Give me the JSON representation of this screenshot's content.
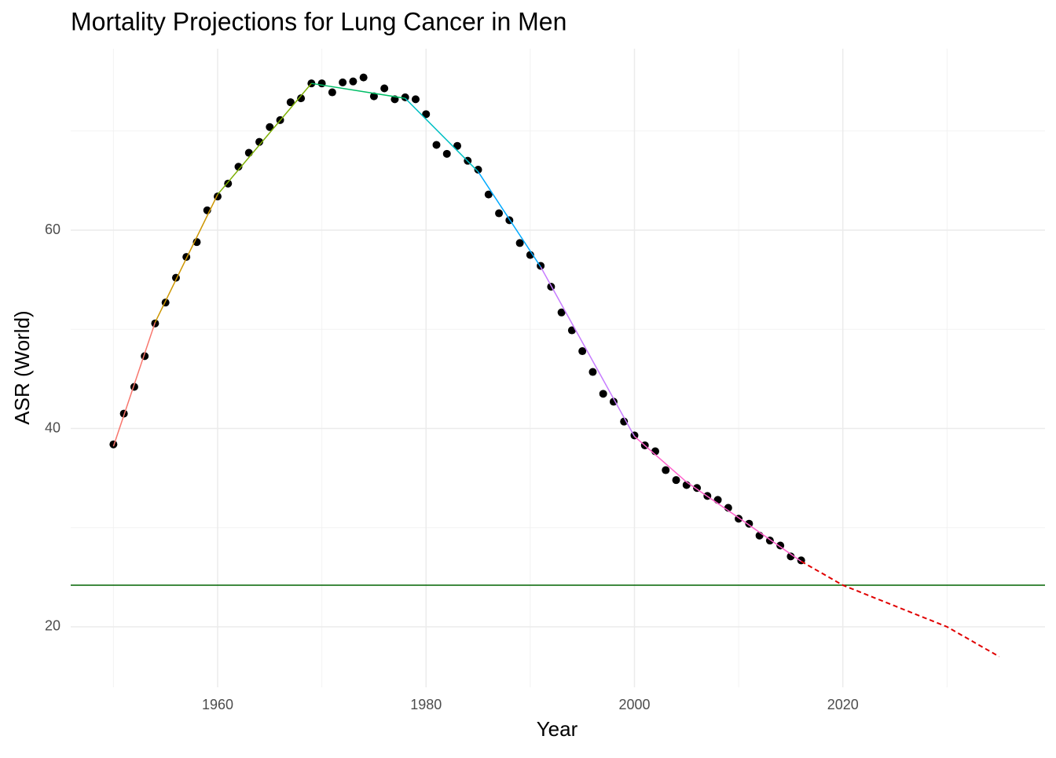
{
  "chart_data": {
    "type": "scatter",
    "title": "Mortality Projections for Lung Cancer in Men",
    "x_label": "Year",
    "y_label": "ASR (World)",
    "xlim": [
      1945.9,
      2039.4
    ],
    "ylim": [
      13.9,
      78.3
    ],
    "xticks": [
      1960,
      1980,
      2000,
      2020
    ],
    "yticks": [
      20,
      40,
      60
    ],
    "minor_xticks": [
      1950,
      1970,
      1990,
      2010,
      2030
    ],
    "minor_yticks": [
      30,
      50,
      70
    ],
    "grid": true,
    "points": {
      "color": "#000000",
      "x": [
        1950,
        1951,
        1952,
        1953,
        1954,
        1955,
        1956,
        1957,
        1958,
        1959,
        1960,
        1961,
        1962,
        1963,
        1964,
        1965,
        1966,
        1967,
        1968,
        1969,
        1970,
        1971,
        1972,
        1973,
        1974,
        1975,
        1976,
        1977,
        1978,
        1979,
        1980,
        1981,
        1982,
        1983,
        1984,
        1985,
        1986,
        1987,
        1988,
        1989,
        1990,
        1991,
        1992,
        1993,
        1994,
        1995,
        1996,
        1997,
        1998,
        1999,
        2000,
        2001,
        2002,
        2003,
        2004,
        2005,
        2006,
        2007,
        2008,
        2009,
        2010,
        2011,
        2012,
        2013,
        2014,
        2015,
        2016
      ],
      "values": [
        38.4,
        41.5,
        44.2,
        47.3,
        50.6,
        52.7,
        55.2,
        57.3,
        58.8,
        62.0,
        63.4,
        64.7,
        66.4,
        67.8,
        68.9,
        70.4,
        71.1,
        72.9,
        73.3,
        74.8,
        74.8,
        73.9,
        74.9,
        75.0,
        75.4,
        73.5,
        74.3,
        73.2,
        73.4,
        73.2,
        71.7,
        68.6,
        67.7,
        68.5,
        67.0,
        66.1,
        63.6,
        61.7,
        61.0,
        58.7,
        57.5,
        56.4,
        54.3,
        51.7,
        49.9,
        47.8,
        45.7,
        43.5,
        42.7,
        40.7,
        39.3,
        38.3,
        37.7,
        35.8,
        34.8,
        34.3,
        34.0,
        33.2,
        32.8,
        32.0,
        30.9,
        30.4,
        29.2,
        28.7,
        28.2,
        27.1,
        26.7
      ]
    },
    "fits": [
      {
        "color": "#F8766D",
        "x": [
          1950,
          1954
        ],
        "values": [
          38.2,
          50.7
        ]
      },
      {
        "color": "#CD9600",
        "x": [
          1954,
          1960
        ],
        "values": [
          50.7,
          63.6
        ]
      },
      {
        "color": "#7CAE00",
        "x": [
          1960,
          1969
        ],
        "values": [
          63.6,
          74.8
        ]
      },
      {
        "color": "#00BE67",
        "x": [
          1969,
          1978
        ],
        "values": [
          74.8,
          73.3
        ]
      },
      {
        "color": "#00BFC4",
        "x": [
          1978,
          1985
        ],
        "values": [
          73.3,
          65.9
        ]
      },
      {
        "color": "#00A9FF",
        "x": [
          1985,
          1991
        ],
        "values": [
          65.9,
          56.3
        ]
      },
      {
        "color": "#C77CFF",
        "x": [
          1991,
          2000
        ],
        "values": [
          56.3,
          39.2
        ]
      },
      {
        "color": "#FF61CC",
        "x": [
          2000,
          2005,
          2010,
          2016
        ],
        "values": [
          39.2,
          34.6,
          31.0,
          26.6
        ]
      }
    ],
    "projection": {
      "color": "#E00000",
      "dashed": true,
      "x": [
        2016,
        2020,
        2025,
        2030,
        2035
      ],
      "values": [
        26.6,
        24.2,
        22.1,
        20.0,
        17.0
      ]
    },
    "reference_line": {
      "value": 24.2,
      "color": "#006400"
    }
  }
}
